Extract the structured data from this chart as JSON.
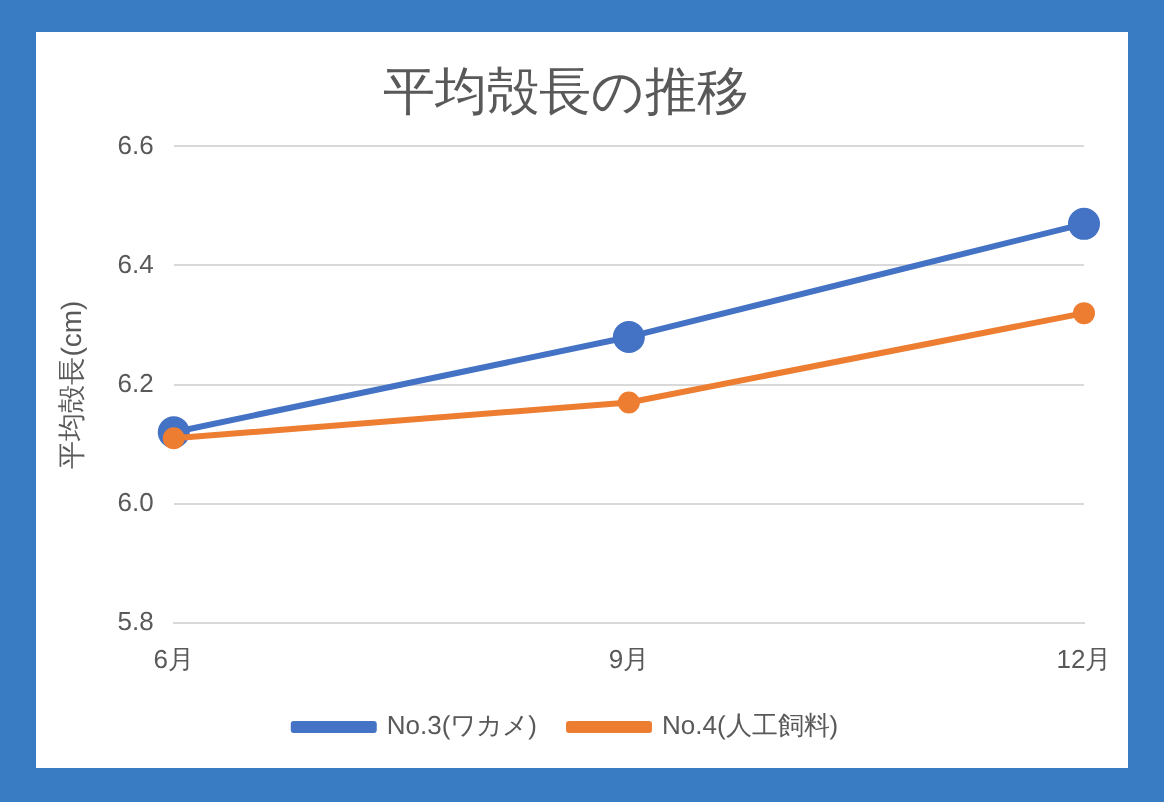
{
  "chart_data": {
    "type": "line",
    "title": "平均殻長の推移",
    "ylabel": "平均殻長(cm)",
    "categories": [
      "6月",
      "9月",
      "12月"
    ],
    "series": [
      {
        "name": "No.3(ワカメ)",
        "color": "#4472c4",
        "values": [
          6.12,
          6.28,
          6.47
        ]
      },
      {
        "name": "No.4(人工飼料)",
        "color": "#ed7d31",
        "values": [
          6.11,
          6.17,
          6.32
        ]
      }
    ],
    "ylim": [
      5.8,
      6.6
    ],
    "yticks": [
      {
        "value": 5.8,
        "label": "5.8"
      },
      {
        "value": 6.0,
        "label": "6.0"
      },
      {
        "value": 6.2,
        "label": "6.2"
      },
      {
        "value": 6.4,
        "label": "6.4"
      },
      {
        "value": 6.6,
        "label": "6.6"
      }
    ],
    "grid": "y",
    "legend": "bottom",
    "marker": "circle",
    "line_style": "solid"
  }
}
